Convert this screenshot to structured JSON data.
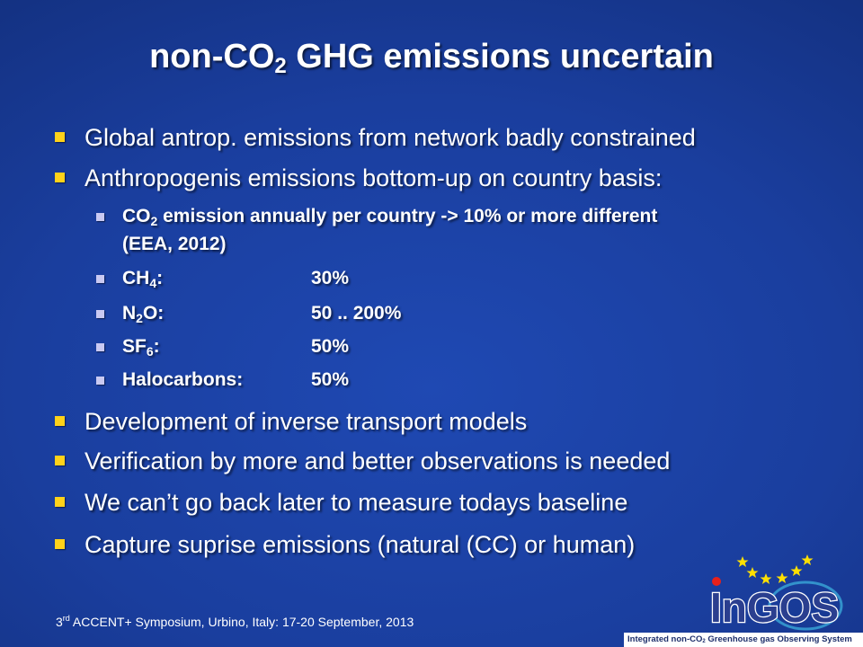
{
  "slide": {
    "title_prefix": "non-CO",
    "title_sub": "2",
    "title_suffix": " GHG emissions uncertain"
  },
  "bullets": {
    "b1": "Global antrop. emissions from network badly constrained",
    "b2": "Anthropogenis emissions bottom-up on country basis:",
    "sub": {
      "co2_prefix": "CO",
      "co2_sub": "2",
      "co2_line1_rest": " emission annually per country -> 10% or more different",
      "co2_line2": "(EEA, 2012)",
      "ch4_prefix": "CH",
      "ch4_sub": "4",
      "ch4_suffix": ":",
      "ch4_value": "30%",
      "n2o_prefix": "N",
      "n2o_sub": "2",
      "n2o_suffix": "O:",
      "n2o_value": "50 .. 200%",
      "sf6_prefix": "SF",
      "sf6_sub": "6",
      "sf6_suffix": ":",
      "sf6_value": "50%",
      "halo_label": "Halocarbons:",
      "halo_value": "50%"
    },
    "b3": "Development of inverse transport models",
    "b4": "Verification by more and better observations is needed",
    "b5": "We can’t go back later to measure todays baseline",
    "b6": "Capture suprise emissions (natural (CC) or human)"
  },
  "footer": {
    "num": "3",
    "sup": "rd",
    "text": " ACCENT+ Symposium, Urbino, Italy: 17-20 September, 2013"
  },
  "logo": {
    "wordmark": "InGOS",
    "caption_prefix": "Integrated non-CO",
    "caption_sub": "2",
    "caption_suffix": " Greenhouse gas Observing System",
    "colors": {
      "star": "#ffe000",
      "dot": "#e8201a",
      "word": "#2b3f8f",
      "ring": "#3aa7d8"
    }
  },
  "colors": {
    "background": "#1a3e9e",
    "bullet_l1": "#ffd21a",
    "bullet_l2": "#c9c9f2",
    "text": "#ffffff"
  }
}
